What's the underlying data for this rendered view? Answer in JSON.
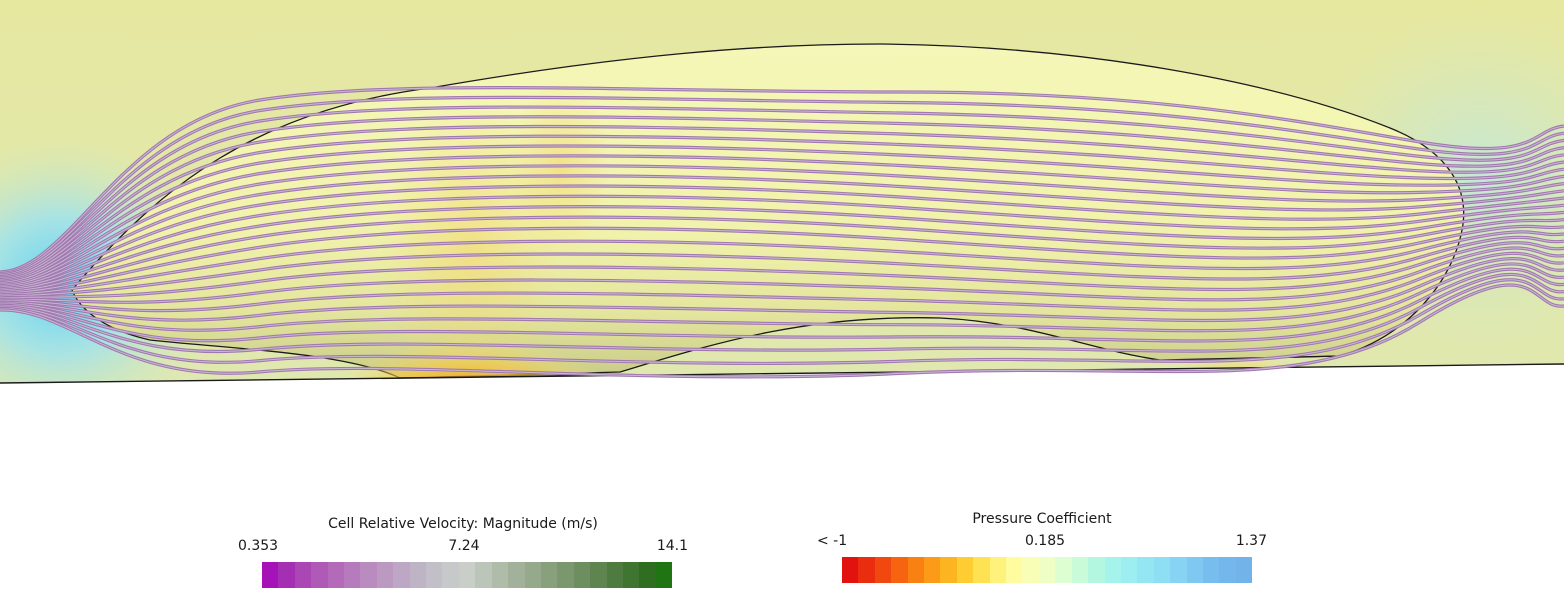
{
  "scene": {
    "colors": {
      "field_background": "#e2e8a8",
      "body_fill": "#f3f5b4",
      "stagnation_blue": "#6fd3f0",
      "high_pressure_red": "#d8341a",
      "streamline": "#a179b0",
      "outline": "#1a1a1a"
    }
  },
  "legends": {
    "velocity": {
      "title": "Cell Relative Velocity: Magnitude (m/s)",
      "min": "0.353",
      "mid": "7.24",
      "max": "14.1",
      "colors": [
        "#a513b8",
        "#a52fb3",
        "#aa47b4",
        "#ae5ab6",
        "#b26ab9",
        "#b67bbc",
        "#b98bbf",
        "#bb99c1",
        "#bda7c4",
        "#bfb3c6",
        "#c2bfc8",
        "#c6c9c9",
        "#c9cec9",
        "#bcc5b9",
        "#afbca9",
        "#a2b29a",
        "#95a98b",
        "#88a07c",
        "#7b976d",
        "#6d8e5e",
        "#5e854f",
        "#4e7c40",
        "#3f7530",
        "#2f6d20",
        "#217414"
      ]
    },
    "pressure": {
      "title": "Pressure Coefficient",
      "min": "< -1",
      "mid": "0.185",
      "max": "1.37",
      "colors": [
        "#e2120f",
        "#ea2d0f",
        "#f1480f",
        "#f66410",
        "#f98112",
        "#fb9b17",
        "#fdb421",
        "#fecd31",
        "#fee252",
        "#fff27b",
        "#fffca0",
        "#f9feb6",
        "#eefec4",
        "#ddfed0",
        "#c9fbd9",
        "#b4f7e1",
        "#a5f3ea",
        "#9ceef0",
        "#95e6f3",
        "#8edef4",
        "#86d3f3",
        "#7ec8f1",
        "#77bdee",
        "#74b7ec",
        "#72b3ea"
      ]
    }
  }
}
